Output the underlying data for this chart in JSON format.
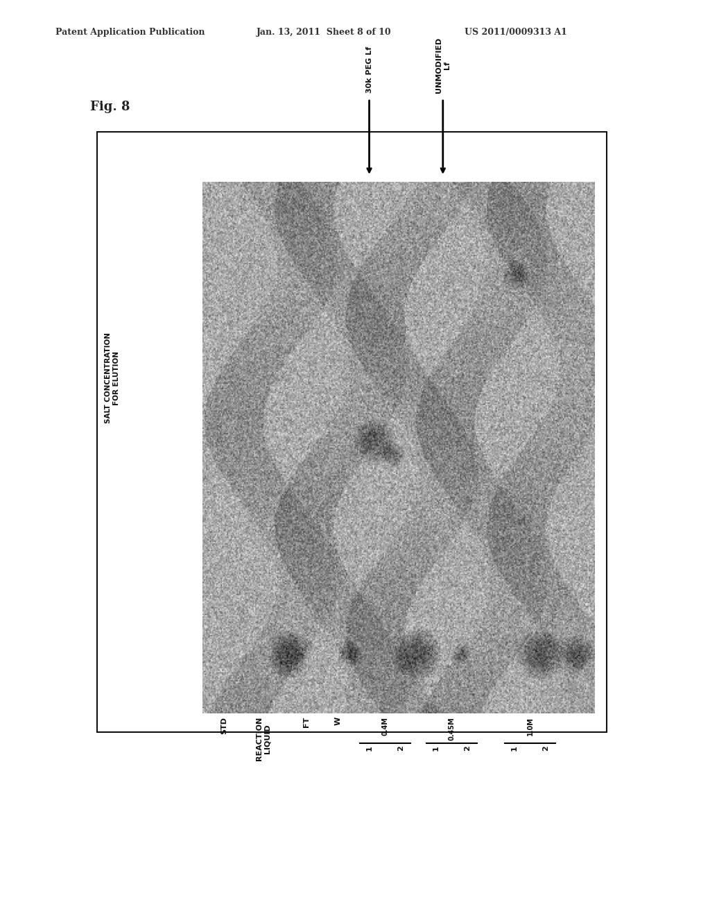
{
  "header_left": "Patent Application Publication",
  "header_mid": "Jan. 13, 2011  Sheet 8 of 10",
  "header_right": "US 2011/0009313 A1",
  "fig_label": "Fig. 8",
  "arrow1_label": "30k PEG Lf",
  "arrow2_label": "UNMODIFIED\nLf",
  "bg_color": "#ffffff",
  "header_fontsize": 9,
  "fig_label_fontsize": 13
}
